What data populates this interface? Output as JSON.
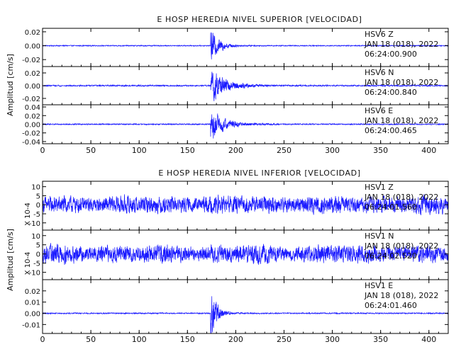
{
  "chart_data": [
    {
      "type": "line",
      "title": "E HOSP HEREDIA NIVEL SUPERIOR [VELOCIDAD]",
      "ylabel": "Amplitud [cm/s]",
      "xlim": [
        0,
        420
      ],
      "x_ticks": [
        "0",
        "50",
        "100",
        "150",
        "200",
        "250",
        "300",
        "350",
        "400"
      ],
      "grid": false,
      "line_color": "#1a1aff",
      "event_time": 175,
      "series": [
        {
          "name": "HSV6   Z",
          "date": "JAN 18 (018), 2022",
          "time": "06:24:00.900",
          "ylim": [
            -0.03,
            0.025
          ],
          "y_ticks": [
            "0.02",
            "0.00",
            "-0.02"
          ],
          "y_tick_values": [
            0.02,
            0.0,
            -0.02
          ],
          "noise_level": 0.0008,
          "peak_amplitude": 0.024,
          "decay_seconds": 9
        },
        {
          "name": "HSV6   N",
          "date": "JAN 18 (018), 2022",
          "time": "06:24:00.840",
          "ylim": [
            -0.03,
            0.03
          ],
          "y_ticks": [
            "0.02",
            "0.00",
            "-0.02"
          ],
          "y_tick_values": [
            0.02,
            0.0,
            -0.02
          ],
          "noise_level": 0.0012,
          "peak_amplitude": 0.027,
          "decay_seconds": 16
        },
        {
          "name": "HSV6   E",
          "date": "JAN 18 (018), 2022",
          "time": "06:24:00.465",
          "ylim": [
            -0.045,
            0.045
          ],
          "y_ticks": [
            "0.04",
            "0.02",
            "0.00",
            "-0.02",
            "-0.04"
          ],
          "y_tick_values": [
            0.04,
            0.02,
            0.0,
            -0.02,
            -0.04
          ],
          "noise_level": 0.0015,
          "peak_amplitude": 0.038,
          "decay_seconds": 14
        }
      ]
    },
    {
      "type": "line",
      "title": "E HOSP HEREDIA NIVEL INFERIOR [VELOCIDAD]",
      "ylabel": "Amplitud [cm/s]",
      "yscale_label": "X 10-4",
      "xlim": [
        0,
        420
      ],
      "x_ticks": [
        "0",
        "50",
        "100",
        "150",
        "200",
        "250",
        "300",
        "350",
        "400"
      ],
      "grid": false,
      "line_color": "#1a1aff",
      "event_time": 175,
      "series": [
        {
          "name": "HSV1   Z",
          "date": "JAN 18 (018), 2022",
          "time": "06:24:01.560",
          "ylim": [
            -14,
            13
          ],
          "y_ticks": [
            "10",
            "5",
            "0",
            "-5",
            "-10"
          ],
          "y_tick_values": [
            10,
            5,
            0,
            -5,
            -10
          ],
          "noise_level": 4.2,
          "peak_amplitude": 11,
          "decay_seconds": 0
        },
        {
          "name": "HSV1   N",
          "date": "JAN 18 (018), 2022",
          "time": "06:24:02.520",
          "ylim": [
            -14,
            13
          ],
          "y_ticks": [
            "10",
            "5",
            "0",
            "-5",
            "-10"
          ],
          "y_tick_values": [
            10,
            5,
            0,
            -5,
            -10
          ],
          "noise_level": 4.2,
          "peak_amplitude": 11,
          "decay_seconds": 0
        },
        {
          "name": "HSV1   E",
          "date": "JAN 18 (018), 2022",
          "time": "06:24:01.460",
          "ylim": [
            -0.018,
            0.03
          ],
          "y_ticks": [
            "0.02",
            "0.01",
            "0.00",
            "-0.01"
          ],
          "y_tick_values": [
            0.02,
            0.01,
            0.0,
            -0.01
          ],
          "noise_level": 0.0006,
          "peak_amplitude": 0.026,
          "decay_seconds": 6
        }
      ]
    }
  ]
}
